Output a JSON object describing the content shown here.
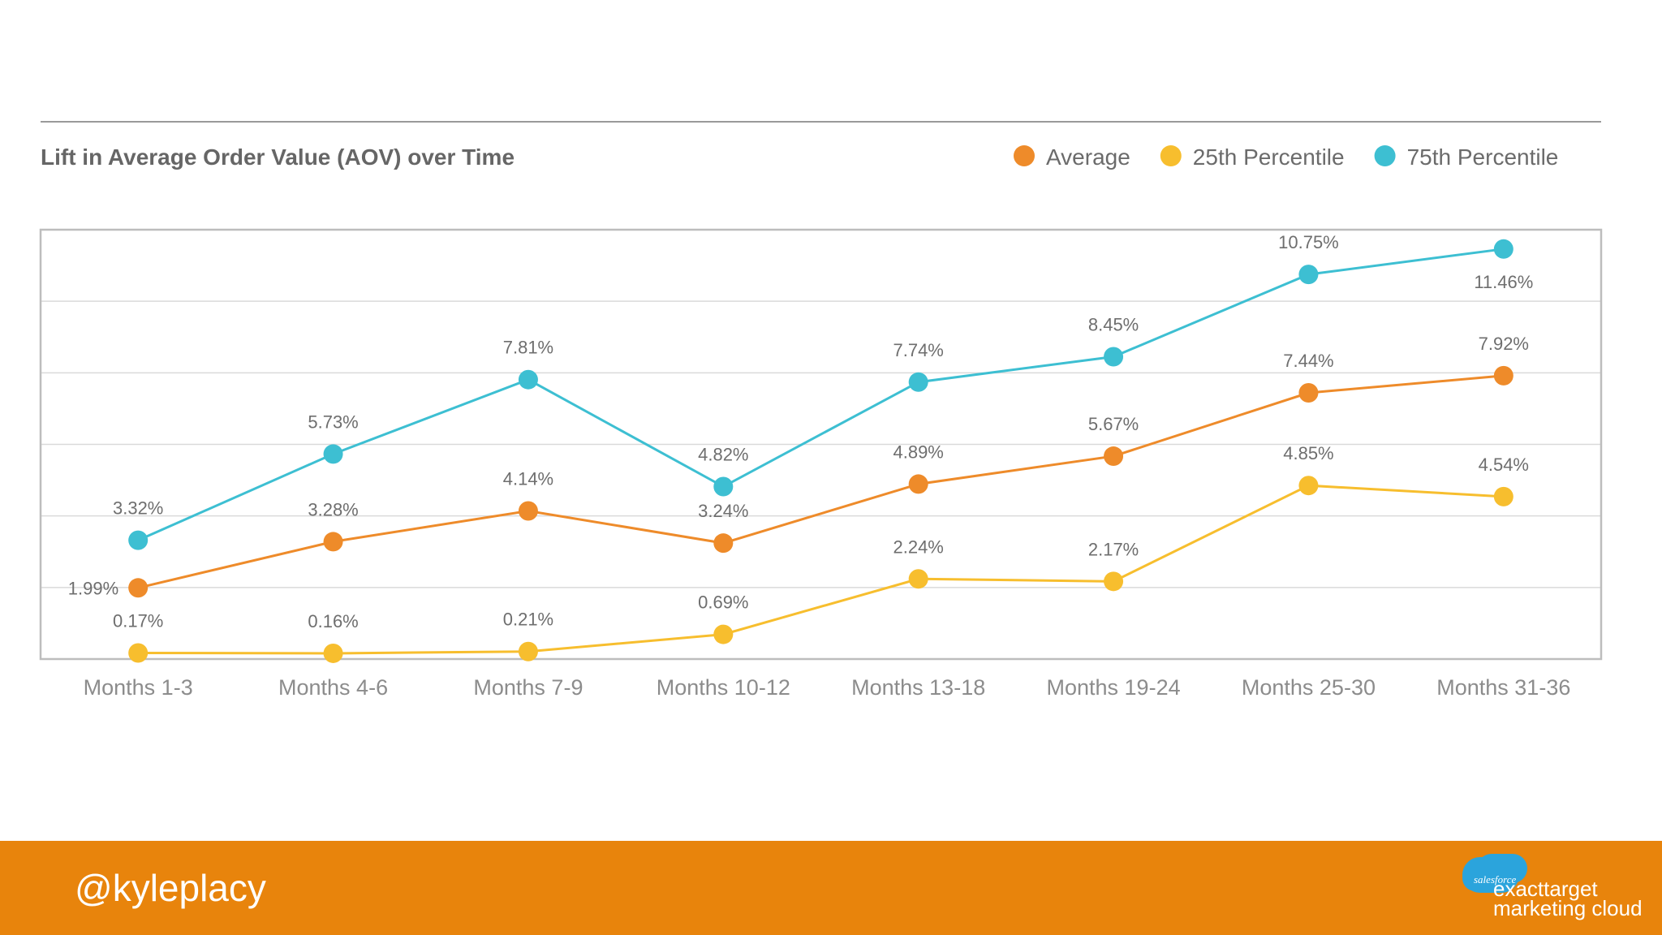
{
  "chart_data": {
    "type": "line",
    "title": "Lift in Average Order Value (AOV) over Time",
    "categories": [
      "Months 1-3",
      "Months 4-6",
      "Months 7-9",
      "Months 10-12",
      "Months 13-18",
      "Months 19-24",
      "Months 25-30",
      "Months 31-36"
    ],
    "series": [
      {
        "name": "Average",
        "color": "#EE8B2A",
        "values": [
          1.99,
          3.28,
          4.14,
          3.24,
          4.89,
          5.67,
          7.44,
          7.92
        ],
        "labels": [
          "1.99%",
          "3.28%",
          "4.14%",
          "3.24%",
          "4.89%",
          "5.67%",
          "7.44%",
          "7.92%"
        ]
      },
      {
        "name": "25th Percentile",
        "color": "#F7BE2E",
        "values": [
          0.17,
          0.16,
          0.21,
          0.69,
          2.24,
          2.17,
          4.85,
          4.54
        ],
        "labels": [
          "0.17%",
          "0.16%",
          "0.21%",
          "0.69%",
          "2.24%",
          "2.17%",
          "4.85%",
          "4.54%"
        ]
      },
      {
        "name": "75th Percentile",
        "color": "#3DBFD2",
        "values": [
          3.32,
          5.73,
          7.81,
          4.82,
          7.74,
          8.45,
          10.75,
          11.46
        ],
        "labels": [
          "3.32%",
          "5.73%",
          "7.81%",
          "4.82%",
          "7.74%",
          "8.45%",
          "10.75%",
          "11.46%"
        ]
      }
    ],
    "ylim": [
      0,
      12
    ],
    "grid": true,
    "xlabel": "",
    "ylabel": "",
    "legend": "top-right"
  },
  "footer": {
    "handle": "@kyleplacy",
    "logo_small": "salesforce",
    "logo_line1": "exacttarget",
    "logo_line2": "marketing cloud"
  },
  "colors": {
    "footer_bg": "#E8840C",
    "grid": "#DADADA",
    "frame": "#BDBDBD",
    "text": "#6B6B6B"
  }
}
